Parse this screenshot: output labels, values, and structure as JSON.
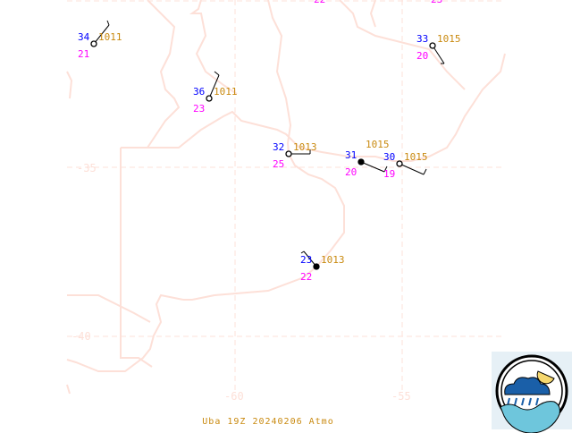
{
  "map": {
    "title": "Uba 19Z 20240206 Atmo",
    "grid_labels": {
      "lat": [
        "-35",
        "-40"
      ],
      "lon": [
        "-60",
        "-55"
      ]
    },
    "colors": {
      "temperature": "#0000ff",
      "dewpoint": "#ff00ff",
      "pressure": "#c98a10",
      "coastline": "#fde0d8",
      "station": "#000000"
    },
    "partial_labels": [
      "22",
      "23"
    ],
    "stations": [
      {
        "temp": "34",
        "pressure": "1011",
        "dewpoint": "21",
        "sky": "empty"
      },
      {
        "temp": "36",
        "pressure": "1011",
        "dewpoint": "23",
        "sky": "empty"
      },
      {
        "temp": "32",
        "pressure": "1013",
        "dewpoint": "25",
        "sky": "empty"
      },
      {
        "temp": "31",
        "pressure": "1015",
        "dewpoint": "20",
        "sky": "filled"
      },
      {
        "temp": "30",
        "pressure": "1015",
        "dewpoint": "19",
        "sky": "empty"
      },
      {
        "temp": "33",
        "pressure": "1015",
        "dewpoint": "20",
        "sky": "empty"
      },
      {
        "temp": "23",
        "pressure": "1013",
        "dewpoint": "22",
        "sky": "filled"
      }
    ]
  },
  "logo": {
    "icon": "weather-cloud-rain-sun-wave-logo"
  }
}
